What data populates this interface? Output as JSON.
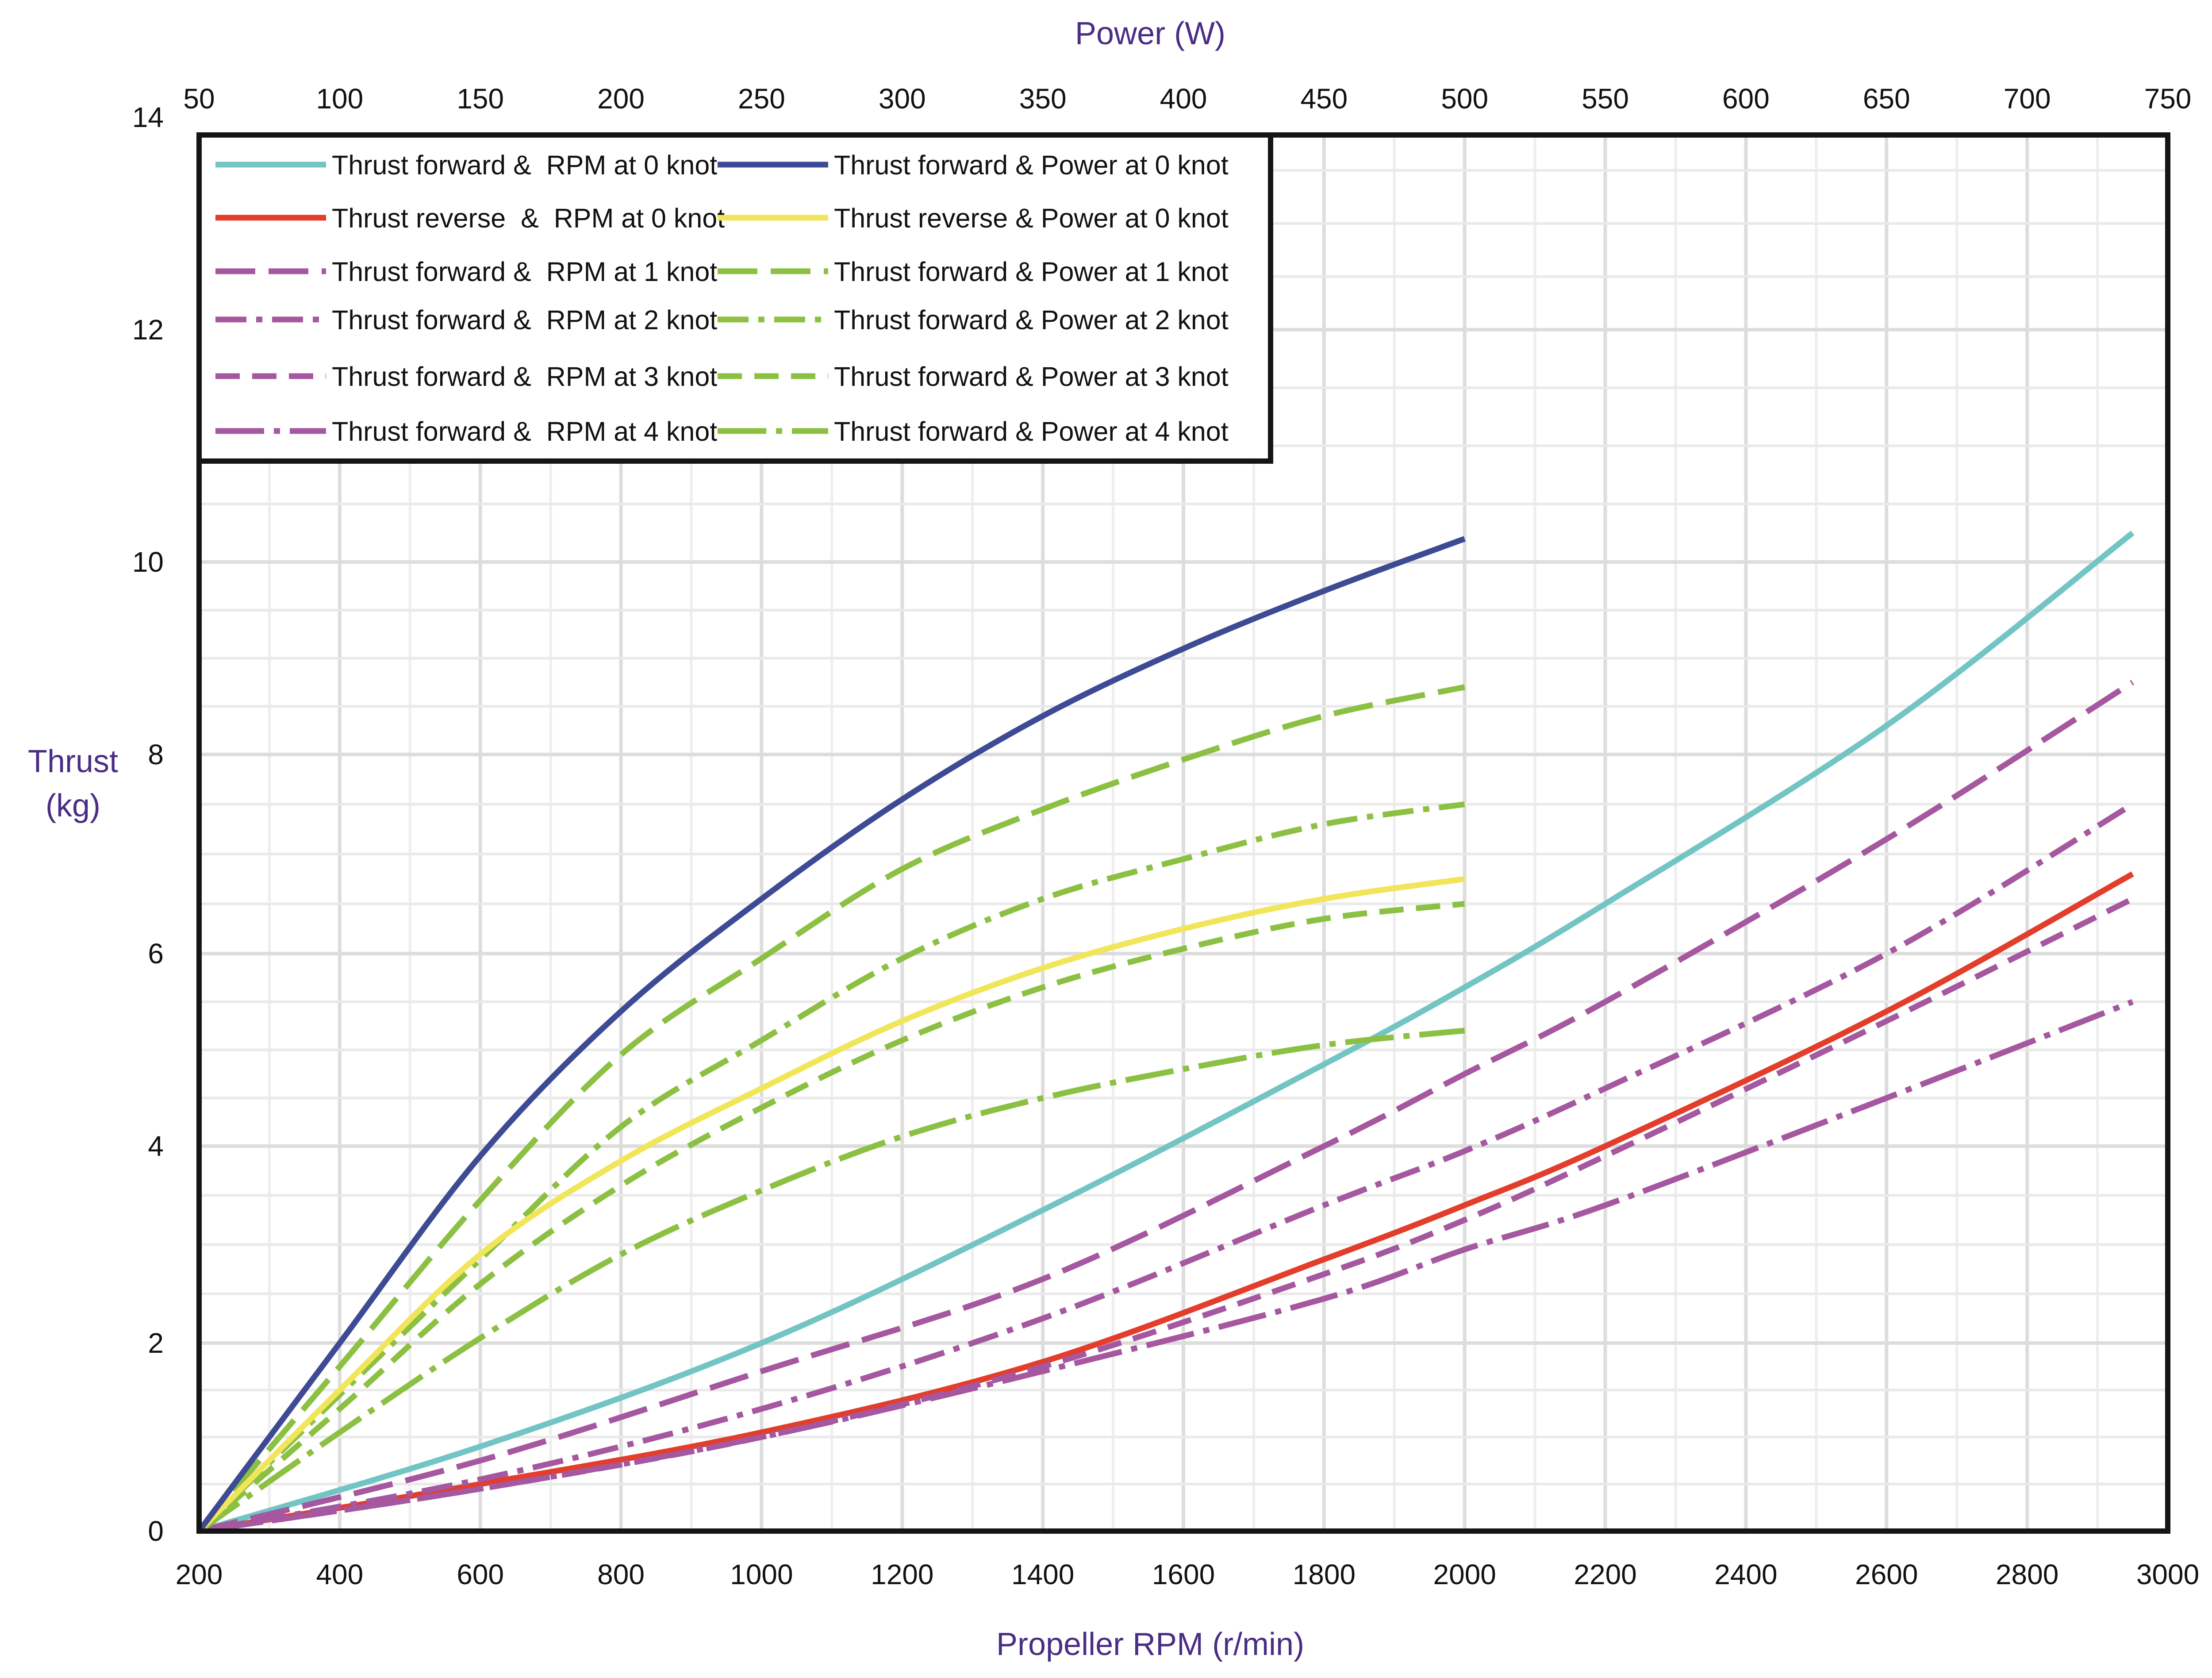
{
  "chart_data": {
    "type": "line",
    "title": "",
    "xlabel": "Propeller RPM (r/min)",
    "x2label": "Power (W)",
    "ylabel": [
      "Thrust",
      "(kg)"
    ],
    "xlim": [
      200,
      3000
    ],
    "x2lim": [
      50,
      750
    ],
    "ylim": [
      0,
      14
    ],
    "grid": true,
    "legend_position": "top-left",
    "x_ticks": [
      200,
      400,
      600,
      800,
      1000,
      1200,
      1400,
      1600,
      1800,
      2000,
      2200,
      2400,
      2600,
      2800,
      3000
    ],
    "x2_ticks": [
      50,
      100,
      150,
      200,
      250,
      300,
      350,
      400,
      450,
      500,
      550,
      600,
      650,
      700,
      750
    ],
    "y_ticks": [
      0,
      2,
      4,
      6,
      8,
      10,
      12,
      14
    ],
    "y_tick_labels": [
      "0",
      "2",
      "4",
      "6",
      "8",
      "10",
      "12",
      "14"
    ],
    "series": [
      {
        "name": "Thrust forward &  RPM at 0 knot",
        "axis": "rpm",
        "color": "#73c4c4",
        "dash": "solid",
        "x": [
          200,
          600,
          1000,
          1400,
          1800,
          2000,
          2200,
          2600,
          2950
        ],
        "y": [
          0,
          0.9,
          2.0,
          3.35,
          4.85,
          5.65,
          6.5,
          8.3,
          10.25
        ]
      },
      {
        "name": "Thrust forward & Power at 0 knot",
        "axis": "power",
        "color": "#3d4b94",
        "dash": "solid",
        "x": [
          50,
          100,
          150,
          200,
          250,
          300,
          350,
          400,
          450,
          500
        ],
        "y": [
          0,
          2.0,
          3.9,
          5.4,
          6.55,
          7.55,
          8.4,
          9.1,
          9.7,
          10.2
        ]
      },
      {
        "name": "Thrust reverse  &  RPM at 0 knot",
        "axis": "rpm",
        "color": "#e33d2c",
        "dash": "solid",
        "x": [
          200,
          600,
          1000,
          1400,
          1800,
          2000,
          2200,
          2600,
          2950
        ],
        "y": [
          0,
          0.5,
          1.05,
          1.8,
          2.85,
          3.4,
          4.0,
          5.4,
          6.8
        ]
      },
      {
        "name": "Thrust reverse & Power at 0 knot",
        "axis": "power",
        "color": "#f1e55a",
        "dash": "solid",
        "x": [
          50,
          100,
          150,
          200,
          250,
          300,
          350,
          400,
          450,
          500
        ],
        "y": [
          0,
          1.5,
          2.9,
          3.85,
          4.6,
          5.3,
          5.85,
          6.25,
          6.55,
          6.75
        ]
      },
      {
        "name": "Thrust forward &  RPM at 1 knot",
        "axis": "rpm",
        "color": "#a5579f",
        "dash": "long",
        "x": [
          200,
          600,
          1000,
          1400,
          1800,
          2000,
          2200,
          2600,
          2950
        ],
        "y": [
          0,
          0.75,
          1.7,
          2.65,
          4.0,
          4.75,
          5.5,
          7.15,
          8.75
        ]
      },
      {
        "name": "Thrust forward & Power at 1 knot",
        "axis": "power",
        "color": "#8cc043",
        "dash": "long",
        "x": [
          50,
          100,
          150,
          200,
          250,
          300,
          350,
          400,
          450,
          500
        ],
        "y": [
          0,
          1.75,
          3.45,
          4.95,
          5.95,
          6.85,
          7.45,
          7.95,
          8.4,
          8.7
        ]
      },
      {
        "name": "Thrust forward &  RPM at 2 knot",
        "axis": "rpm",
        "color": "#a5579f",
        "dash": "dashdot",
        "x": [
          200,
          600,
          1000,
          1400,
          1800,
          2000,
          2200,
          2600,
          2950
        ],
        "y": [
          0,
          0.55,
          1.3,
          2.25,
          3.4,
          3.95,
          4.6,
          6.0,
          7.5
        ]
      },
      {
        "name": "Thrust forward & Power at 2 knot",
        "axis": "power",
        "color": "#8cc043",
        "dash": "dashdot",
        "x": [
          50,
          100,
          150,
          200,
          250,
          300,
          350,
          400,
          450,
          500
        ],
        "y": [
          0,
          1.45,
          2.85,
          4.2,
          5.1,
          5.95,
          6.55,
          6.95,
          7.3,
          7.5
        ]
      },
      {
        "name": "Thrust forward &  RPM at 3 knot",
        "axis": "rpm",
        "color": "#a5579f",
        "dash": "medium",
        "x": [
          200,
          600,
          1000,
          1400,
          1800,
          2000,
          2200,
          2600,
          2950
        ],
        "y": [
          0,
          0.45,
          1.0,
          1.75,
          2.7,
          3.25,
          3.9,
          5.3,
          6.55
        ]
      },
      {
        "name": "Thrust forward & Power at 3 knot",
        "axis": "power",
        "color": "#8cc043",
        "dash": "medium",
        "x": [
          50,
          100,
          150,
          200,
          250,
          300,
          350,
          400,
          450,
          500
        ],
        "y": [
          0,
          1.3,
          2.6,
          3.6,
          4.4,
          5.1,
          5.65,
          6.05,
          6.35,
          6.5
        ]
      },
      {
        "name": "Thrust forward &  RPM at 4 knot",
        "axis": "rpm",
        "color": "#a5579f",
        "dash": "dashdot2",
        "x": [
          200,
          600,
          1000,
          1400,
          1800,
          2000,
          2200,
          2600,
          2950
        ],
        "y": [
          0,
          0.45,
          1.0,
          1.7,
          2.45,
          2.95,
          3.4,
          4.5,
          5.5
        ]
      },
      {
        "name": "Thrust forward & Power at 4 knot",
        "axis": "power",
        "color": "#8cc043",
        "dash": "dashdot2",
        "x": [
          50,
          100,
          150,
          200,
          250,
          300,
          350,
          400,
          450,
          500
        ],
        "y": [
          0,
          1.05,
          2.05,
          2.9,
          3.55,
          4.1,
          4.5,
          4.8,
          5.05,
          5.2
        ]
      }
    ],
    "legend_layout": [
      [
        0,
        1
      ],
      [
        2,
        3
      ],
      [
        4,
        5
      ],
      [
        6,
        7
      ],
      [
        8,
        9
      ],
      [
        10,
        11
      ]
    ]
  }
}
